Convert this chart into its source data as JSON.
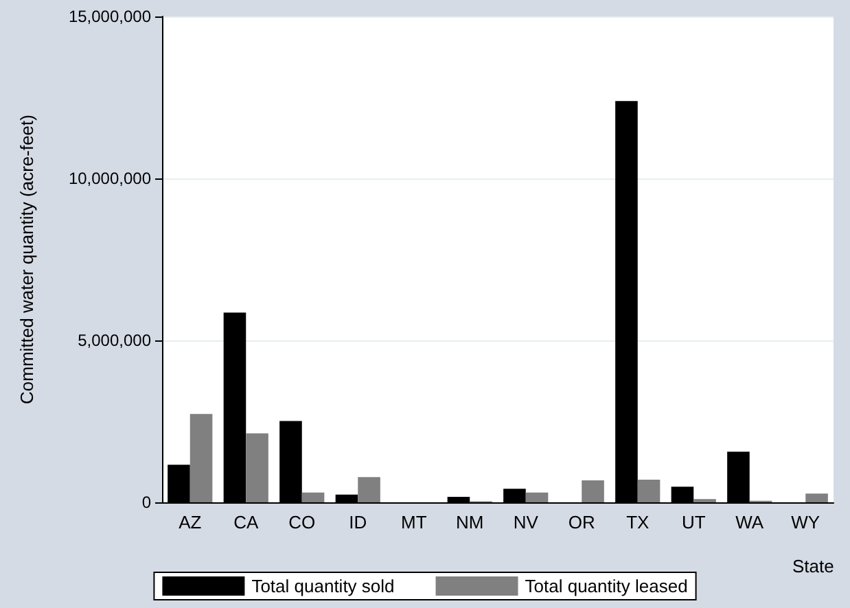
{
  "chart_data": {
    "type": "bar",
    "xlabel": "State",
    "ylabel": "Committed water quantity (acre-feet)",
    "categories": [
      "AZ",
      "CA",
      "CO",
      "ID",
      "MT",
      "NM",
      "NV",
      "OR",
      "TX",
      "UT",
      "WA",
      "WY"
    ],
    "series": [
      {
        "name": "Total quantity sold",
        "color": "#000000",
        "values": [
          1160000,
          5860000,
          2510000,
          240000,
          null,
          170000,
          420000,
          0,
          12390000,
          480000,
          1560000,
          0
        ]
      },
      {
        "name": "Total quantity leased",
        "color": "#808080",
        "values": [
          2730000,
          2130000,
          300000,
          780000,
          null,
          30000,
          300000,
          680000,
          700000,
          100000,
          50000,
          270000
        ]
      }
    ],
    "ylim": [
      0,
      15000000
    ],
    "yticks": [
      {
        "value": 0,
        "label": "0"
      },
      {
        "value": 5000000,
        "label": "5,000,000"
      },
      {
        "value": 10000000,
        "label": "10,000,000"
      },
      {
        "value": 15000000,
        "label": "15,000,000"
      }
    ],
    "grid": "y",
    "legend": "bottom"
  }
}
